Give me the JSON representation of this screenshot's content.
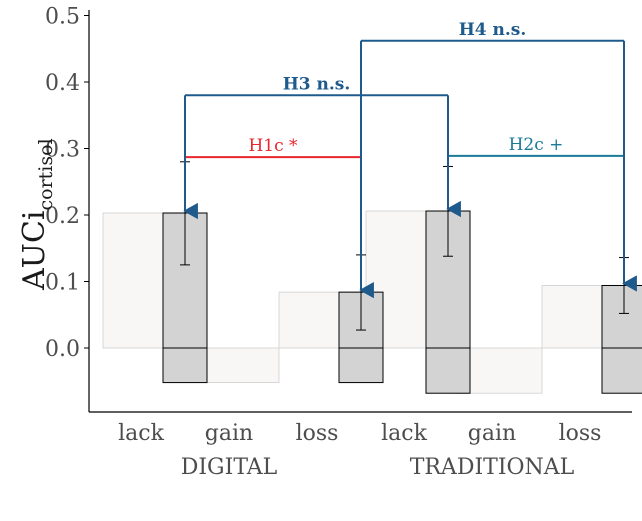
{
  "chart_data": {
    "type": "bar",
    "ylabel": "AUCi",
    "ylabel_subscript": "cortisol",
    "ylim": [
      -0.095,
      0.51
    ],
    "yticks": [
      0.0,
      0.1,
      0.2,
      0.3,
      0.4,
      0.5
    ],
    "ytick_labels": [
      "0.0",
      "0.1",
      "0.2",
      "0.3",
      "0.4",
      "0.5"
    ],
    "groups": [
      {
        "label": "DIGITAL",
        "categories": [
          "lack",
          "gain",
          "loss"
        ],
        "values": [
          0.203,
          -0.052,
          0.084
        ],
        "error_low": [
          0.125,
          null,
          0.027
        ],
        "error_high": [
          0.28,
          null,
          0.14
        ]
      },
      {
        "label": "TRADITIONAL",
        "categories": [
          "lack",
          "gain",
          "loss"
        ],
        "values": [
          0.206,
          -0.068,
          0.094
        ],
        "error_low": [
          0.138,
          null,
          0.052
        ],
        "error_high": [
          0.273,
          null,
          0.136
        ]
      }
    ],
    "colors": {
      "bar_fill": "#d3d3d3",
      "bar_stroke": "#000000",
      "shade_fill": "#f8f7f5",
      "shade_stroke": "#cfcfcf",
      "h_blue": "#1f5a8c",
      "h_teal": "#1a7a9a",
      "h_red": "#e8262c"
    },
    "annotations": [
      {
        "label": "H1c *",
        "color": "red",
        "bold": false,
        "from": [
          0,
          0
        ],
        "to": [
          0,
          2
        ],
        "y": 0.287
      },
      {
        "label": "H2c +",
        "color": "teal",
        "bold": false,
        "from": [
          1,
          0
        ],
        "to": [
          1,
          2
        ],
        "y": 0.289
      },
      {
        "label": "H3 n.s.",
        "color": "blue",
        "bold": true,
        "from": [
          0,
          0
        ],
        "to": [
          1,
          0
        ],
        "y": 0.38
      },
      {
        "label": "H4 n.s.",
        "color": "blue",
        "bold": true,
        "from": [
          0,
          2
        ],
        "to": [
          1,
          2
        ],
        "y": 0.462
      }
    ]
  }
}
